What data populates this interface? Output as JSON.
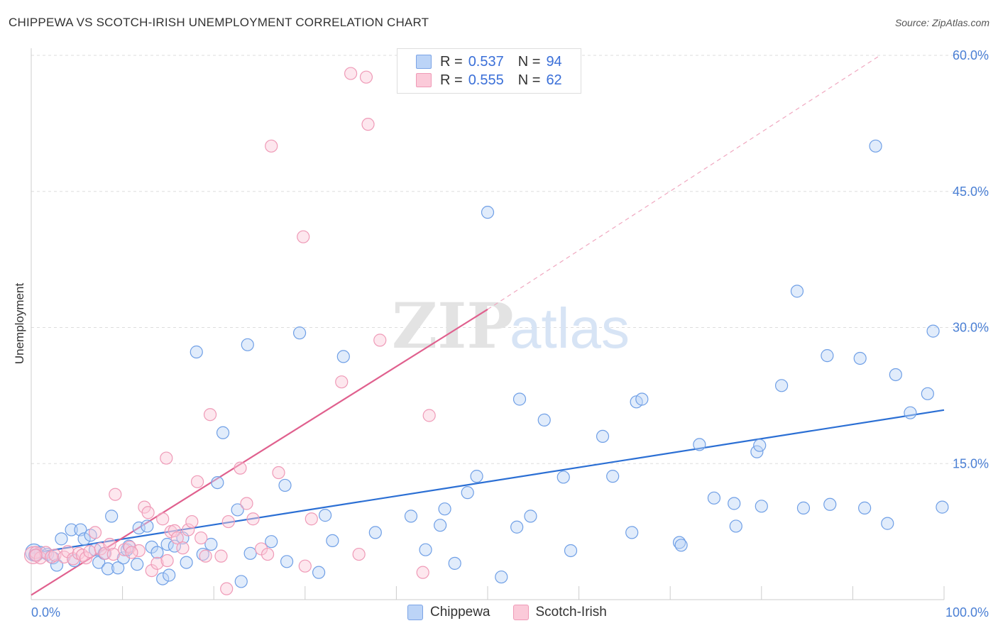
{
  "title": "CHIPPEWA VS SCOTCH-IRISH UNEMPLOYMENT CORRELATION CHART",
  "source": "Source: ZipAtlas.com",
  "watermark": {
    "zip": "ZIP",
    "atlas": "atlas"
  },
  "colors": {
    "chippewa": "#6f9fe6",
    "chippewa_line": "#2b6fd4",
    "scotch": "#f19ab8",
    "scotch_line": "#e0608e",
    "tick": "#4a7fd4",
    "grid": "#dddddd"
  },
  "legend": {
    "rows": [
      {
        "r_label": "R =",
        "r_value": "0.537",
        "n_label": "N =",
        "n_value": "94"
      },
      {
        "r_label": "R =",
        "r_value": "0.555",
        "n_label": "N =",
        "n_value": "62"
      }
    ]
  },
  "bottom_legend": [
    "Chippewa",
    "Scotch-Irish"
  ],
  "chart_data": {
    "type": "scatter",
    "title": "CHIPPEWA VS SCOTCH-IRISH UNEMPLOYMENT CORRELATION CHART",
    "xlabel": "",
    "ylabel": "Unemployment",
    "xlim": [
      0,
      100
    ],
    "ylim": [
      0,
      60
    ],
    "x_tick_labels": [
      "0.0%",
      "100.0%"
    ],
    "y_ticks": [
      15,
      30,
      45,
      60
    ],
    "y_tick_labels": [
      "15.0%",
      "30.0%",
      "45.0%",
      "60.0%"
    ],
    "grid": true,
    "legend_position": "top-center",
    "series": [
      {
        "name": "Chippewa",
        "R": 0.537,
        "N": 94,
        "trend": [
          [
            0,
            5.1
          ],
          [
            100,
            20.9
          ]
        ],
        "points": [
          [
            0.3,
            5.2
          ],
          [
            0.6,
            4.9
          ],
          [
            1.0,
            5.2
          ],
          [
            1.8,
            5.0
          ],
          [
            2.4,
            4.6
          ],
          [
            2.8,
            3.8
          ],
          [
            3.3,
            6.7
          ],
          [
            4.4,
            7.7
          ],
          [
            4.7,
            4.3
          ],
          [
            5.4,
            7.7
          ],
          [
            5.8,
            6.7
          ],
          [
            6.5,
            7.1
          ],
          [
            7.0,
            5.5
          ],
          [
            7.4,
            4.1
          ],
          [
            8.0,
            5.1
          ],
          [
            8.4,
            3.4
          ],
          [
            8.8,
            9.2
          ],
          [
            9.5,
            3.5
          ],
          [
            10.1,
            4.6
          ],
          [
            10.5,
            5.5
          ],
          [
            10.7,
            5.9
          ],
          [
            11.6,
            3.9
          ],
          [
            11.8,
            7.9
          ],
          [
            12.7,
            8.1
          ],
          [
            13.2,
            5.8
          ],
          [
            13.8,
            5.2
          ],
          [
            14.4,
            2.3
          ],
          [
            14.9,
            6.1
          ],
          [
            15.1,
            2.7
          ],
          [
            15.7,
            5.9
          ],
          [
            16.6,
            6.8
          ],
          [
            17.0,
            4.1
          ],
          [
            18.1,
            27.3
          ],
          [
            18.8,
            5.0
          ],
          [
            19.7,
            6.1
          ],
          [
            20.4,
            12.9
          ],
          [
            21.0,
            18.4
          ],
          [
            22.6,
            9.9
          ],
          [
            23.0,
            2.0
          ],
          [
            23.7,
            28.1
          ],
          [
            24.0,
            5.1
          ],
          [
            26.3,
            6.4
          ],
          [
            28.0,
            4.2
          ],
          [
            27.8,
            12.6
          ],
          [
            29.4,
            29.4
          ],
          [
            31.5,
            3.0
          ],
          [
            32.2,
            9.3
          ],
          [
            33.0,
            6.5
          ],
          [
            34.2,
            26.8
          ],
          [
            37.7,
            7.4
          ],
          [
            41.6,
            9.2
          ],
          [
            43.2,
            5.5
          ],
          [
            44.8,
            8.2
          ],
          [
            45.3,
            10.0
          ],
          [
            46.4,
            4.0
          ],
          [
            47.8,
            11.8
          ],
          [
            48.8,
            13.6
          ],
          [
            50.0,
            42.7
          ],
          [
            51.5,
            2.5
          ],
          [
            53.2,
            8.0
          ],
          [
            53.5,
            22.1
          ],
          [
            54.7,
            9.2
          ],
          [
            56.2,
            19.8
          ],
          [
            58.3,
            13.5
          ],
          [
            59.1,
            5.4
          ],
          [
            62.6,
            18.0
          ],
          [
            63.7,
            13.6
          ],
          [
            65.8,
            7.4
          ],
          [
            66.3,
            21.8
          ],
          [
            66.9,
            22.1
          ],
          [
            71.0,
            6.3
          ],
          [
            71.2,
            6.0
          ],
          [
            73.2,
            17.1
          ],
          [
            74.8,
            11.2
          ],
          [
            77.0,
            10.6
          ],
          [
            77.2,
            8.1
          ],
          [
            79.5,
            16.3
          ],
          [
            79.8,
            17.0
          ],
          [
            80.0,
            10.3
          ],
          [
            82.2,
            23.6
          ],
          [
            83.9,
            34.0
          ],
          [
            84.6,
            10.1
          ],
          [
            87.2,
            26.9
          ],
          [
            87.5,
            10.5
          ],
          [
            90.8,
            26.6
          ],
          [
            91.3,
            10.1
          ],
          [
            92.5,
            50.0
          ],
          [
            93.8,
            8.4
          ],
          [
            94.7,
            24.8
          ],
          [
            96.3,
            20.6
          ],
          [
            98.2,
            22.7
          ],
          [
            98.8,
            29.6
          ],
          [
            99.8,
            10.2
          ],
          [
            0.4,
            4.9
          ]
        ]
      },
      {
        "name": "Scotch-Irish",
        "R": 0.555,
        "N": 62,
        "trend": [
          [
            0,
            0.5
          ],
          [
            50,
            32.0
          ]
        ],
        "trend_extension": [
          [
            50,
            32.0
          ],
          [
            93,
            60.0
          ]
        ],
        "points": [
          [
            0.2,
            4.9
          ],
          [
            0.5,
            5.2
          ],
          [
            1.0,
            4.6
          ],
          [
            1.6,
            5.2
          ],
          [
            2.2,
            4.7
          ],
          [
            2.6,
            4.9
          ],
          [
            3.6,
            4.7
          ],
          [
            4.0,
            5.3
          ],
          [
            4.6,
            4.5
          ],
          [
            5.2,
            5.1
          ],
          [
            5.6,
            4.9
          ],
          [
            6.0,
            4.6
          ],
          [
            6.4,
            5.3
          ],
          [
            7.0,
            7.4
          ],
          [
            7.6,
            5.6
          ],
          [
            8.1,
            5.1
          ],
          [
            8.6,
            6.1
          ],
          [
            9.2,
            11.6
          ],
          [
            10.2,
            5.5
          ],
          [
            10.8,
            5.8
          ],
          [
            11.8,
            5.4
          ],
          [
            12.4,
            10.2
          ],
          [
            12.8,
            9.6
          ],
          [
            13.2,
            3.2
          ],
          [
            13.8,
            4.0
          ],
          [
            14.4,
            8.9
          ],
          [
            14.8,
            15.6
          ],
          [
            15.3,
            7.5
          ],
          [
            15.7,
            7.6
          ],
          [
            16.0,
            6.8
          ],
          [
            16.6,
            5.7
          ],
          [
            17.2,
            7.7
          ],
          [
            17.6,
            8.6
          ],
          [
            18.2,
            13.0
          ],
          [
            18.6,
            6.8
          ],
          [
            19.1,
            4.8
          ],
          [
            19.6,
            20.4
          ],
          [
            20.8,
            4.8
          ],
          [
            21.4,
            1.2
          ],
          [
            21.6,
            8.6
          ],
          [
            22.9,
            14.5
          ],
          [
            23.6,
            10.6
          ],
          [
            24.3,
            8.9
          ],
          [
            25.2,
            5.6
          ],
          [
            25.9,
            5.0
          ],
          [
            26.3,
            50.0
          ],
          [
            27.1,
            14.0
          ],
          [
            29.8,
            40.0
          ],
          [
            30.0,
            3.7
          ],
          [
            30.7,
            8.9
          ],
          [
            34.0,
            24.0
          ],
          [
            35.0,
            58.0
          ],
          [
            35.9,
            5.0
          ],
          [
            36.7,
            57.6
          ],
          [
            36.9,
            52.4
          ],
          [
            38.2,
            28.6
          ],
          [
            42.9,
            3.0
          ],
          [
            43.6,
            20.3
          ],
          [
            0.5,
            4.9
          ],
          [
            11.0,
            5.2
          ],
          [
            9.0,
            5.0
          ],
          [
            14.9,
            4.3
          ]
        ]
      }
    ]
  }
}
